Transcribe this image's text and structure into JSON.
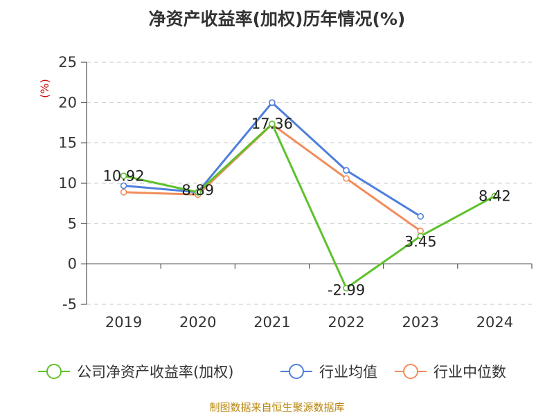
{
  "chart_data": {
    "type": "line",
    "title": "净资产收益率(加权)历年情况(%)",
    "ylabel": "(%)",
    "xlabel": "",
    "ylim": [
      -5,
      25
    ],
    "yticks": [
      -5,
      0,
      5,
      10,
      15,
      20,
      25
    ],
    "categories": [
      "2019",
      "2020",
      "2021",
      "2022",
      "2023",
      "2024"
    ],
    "grid": true,
    "legend_position": "bottom",
    "series": [
      {
        "name": "公司净资产收益率(加权)",
        "color": "#5ec12c",
        "values": [
          10.92,
          8.89,
          17.36,
          -2.99,
          3.45,
          8.42
        ],
        "show_labels": true
      },
      {
        "name": "行业均值",
        "color": "#4f7fdc",
        "values": [
          9.7,
          8.9,
          20.0,
          11.6,
          5.9,
          null
        ],
        "show_labels": false
      },
      {
        "name": "行业中位数",
        "color": "#f28c5a",
        "values": [
          8.9,
          8.6,
          17.3,
          10.6,
          4.1,
          null
        ],
        "show_labels": false
      }
    ]
  },
  "footer": {
    "source": "制图数据来自恒生聚源数据库"
  }
}
